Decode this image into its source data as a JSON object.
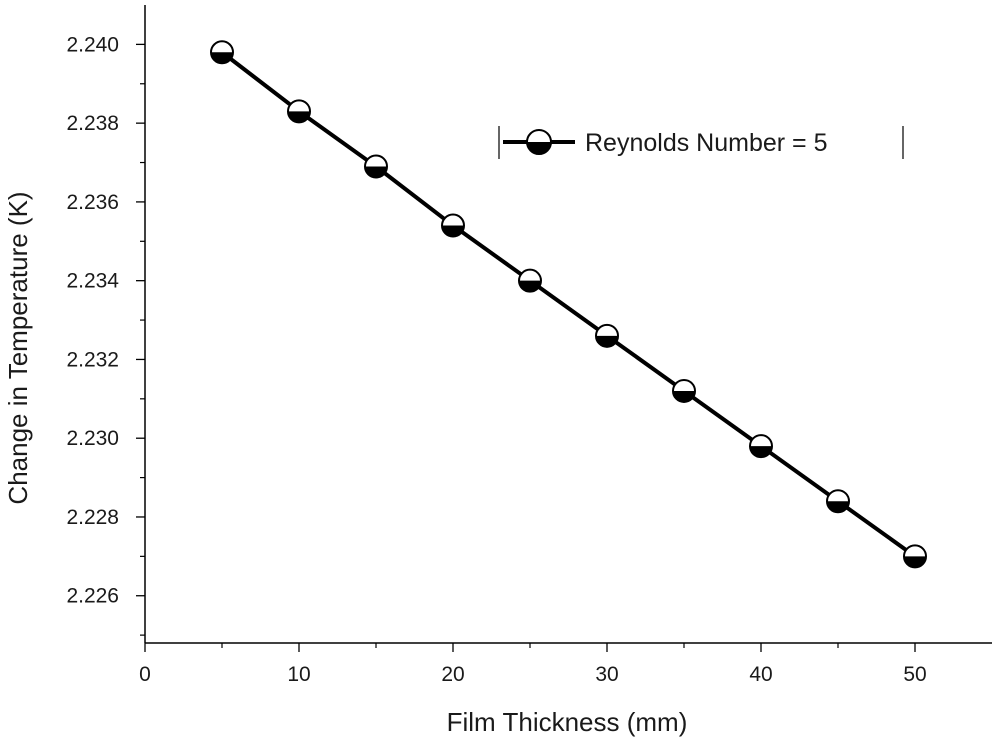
{
  "chart_data": {
    "type": "line",
    "xlabel": "Film Thickness (mm)",
    "ylabel": "Change in Temperature (K)",
    "xlim": [
      0,
      55
    ],
    "ylim": [
      2.2248,
      2.241
    ],
    "x_ticks": [
      0,
      10,
      20,
      30,
      40,
      50
    ],
    "y_ticks": [
      2.226,
      2.228,
      2.23,
      2.232,
      2.234,
      2.236,
      2.238,
      2.24
    ],
    "x_tick_labels": [
      "0",
      "10",
      "20",
      "30",
      "40",
      "50"
    ],
    "y_tick_labels": [
      "2.226",
      "2.228",
      "2.230",
      "2.232",
      "2.234",
      "2.236",
      "2.238",
      "2.240"
    ],
    "grid": false,
    "legend_position": "top-right",
    "series": [
      {
        "name": "Reynolds Number = 5",
        "marker": "half-filled-circle",
        "color": "#000000",
        "x": [
          5,
          10,
          15,
          20,
          25,
          30,
          35,
          40,
          45,
          50
        ],
        "values": [
          2.2398,
          2.2383,
          2.2369,
          2.2354,
          2.234,
          2.2326,
          2.2312,
          2.2298,
          2.2284,
          2.227
        ]
      }
    ]
  }
}
